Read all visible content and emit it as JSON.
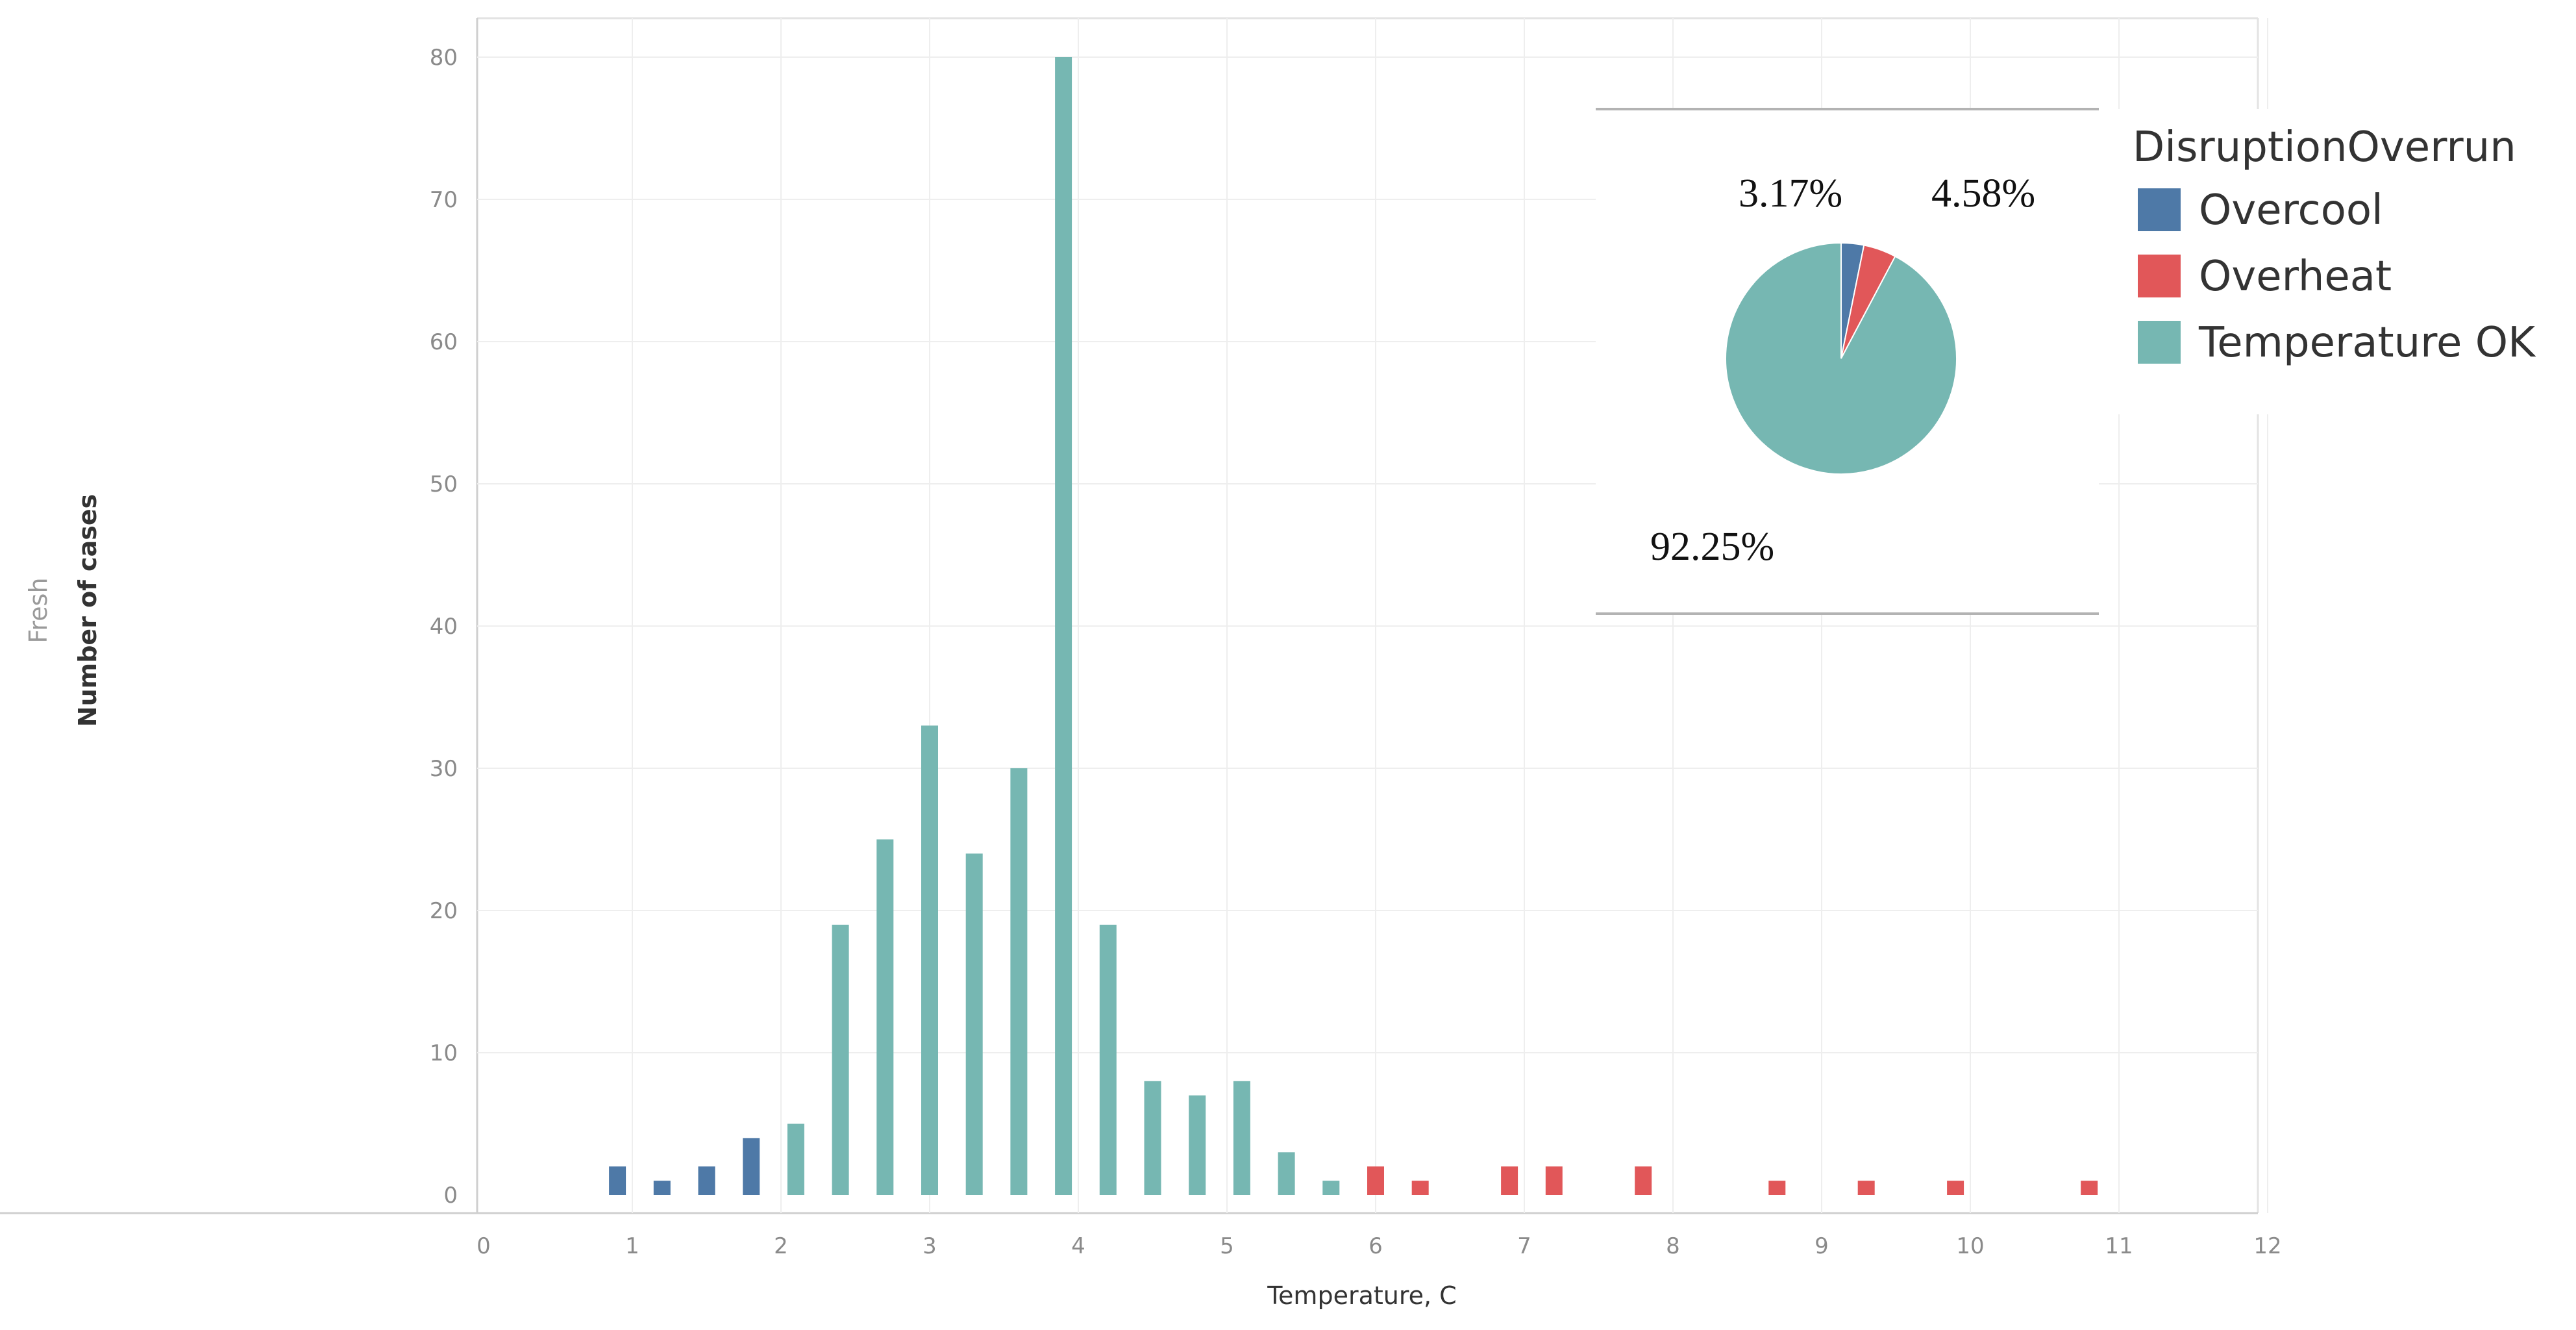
{
  "chart_data": [
    {
      "type": "bar",
      "pane_label": "Fresh",
      "xlabel": "Temperature, C",
      "ylabel": "Number of cases",
      "xlim": [
        0,
        12
      ],
      "ylim": [
        0,
        80
      ],
      "x_ticks": [
        "0",
        "1",
        "2",
        "3",
        "4",
        "5",
        "6",
        "7",
        "8",
        "9",
        "10",
        "11",
        "12"
      ],
      "y_ticks": [
        "0",
        "10",
        "20",
        "30",
        "40",
        "50",
        "60",
        "70",
        "80"
      ],
      "grid": true,
      "colors": {
        "Overcool": "#4e79a7",
        "Overheat": "#e15759",
        "Temperature OK": "#76b7b2"
      },
      "series": [
        {
          "name": "Overcool",
          "x": [
            0.9,
            1.2,
            1.5,
            1.8
          ],
          "values": [
            2,
            1,
            2,
            4
          ]
        },
        {
          "name": "Temperature OK",
          "x": [
            2.1,
            2.4,
            2.7,
            3.0,
            3.3,
            3.6,
            3.9,
            4.2,
            4.5,
            4.8,
            5.1,
            5.4,
            5.7
          ],
          "values": [
            5,
            19,
            25,
            33,
            24,
            30,
            80,
            19,
            8,
            7,
            8,
            3,
            1
          ]
        },
        {
          "name": "Overheat",
          "x": [
            6.0,
            6.3,
            6.9,
            7.2,
            7.8,
            8.7,
            9.3,
            9.9,
            10.8
          ],
          "values": [
            2,
            1,
            2,
            2,
            2,
            1,
            1,
            1,
            1
          ]
        }
      ]
    },
    {
      "type": "pie",
      "slices": [
        {
          "label": "Overcool",
          "value": 3.17,
          "text": "3.17%"
        },
        {
          "label": "Overheat",
          "value": 4.58,
          "text": "4.58%"
        },
        {
          "label": "Temperature OK",
          "value": 92.25,
          "text": "92.25%"
        }
      ],
      "legend": {
        "title": "DisruptionOverrun",
        "entries": [
          "Overcool",
          "Overheat",
          "Temperature OK"
        ]
      }
    }
  ]
}
